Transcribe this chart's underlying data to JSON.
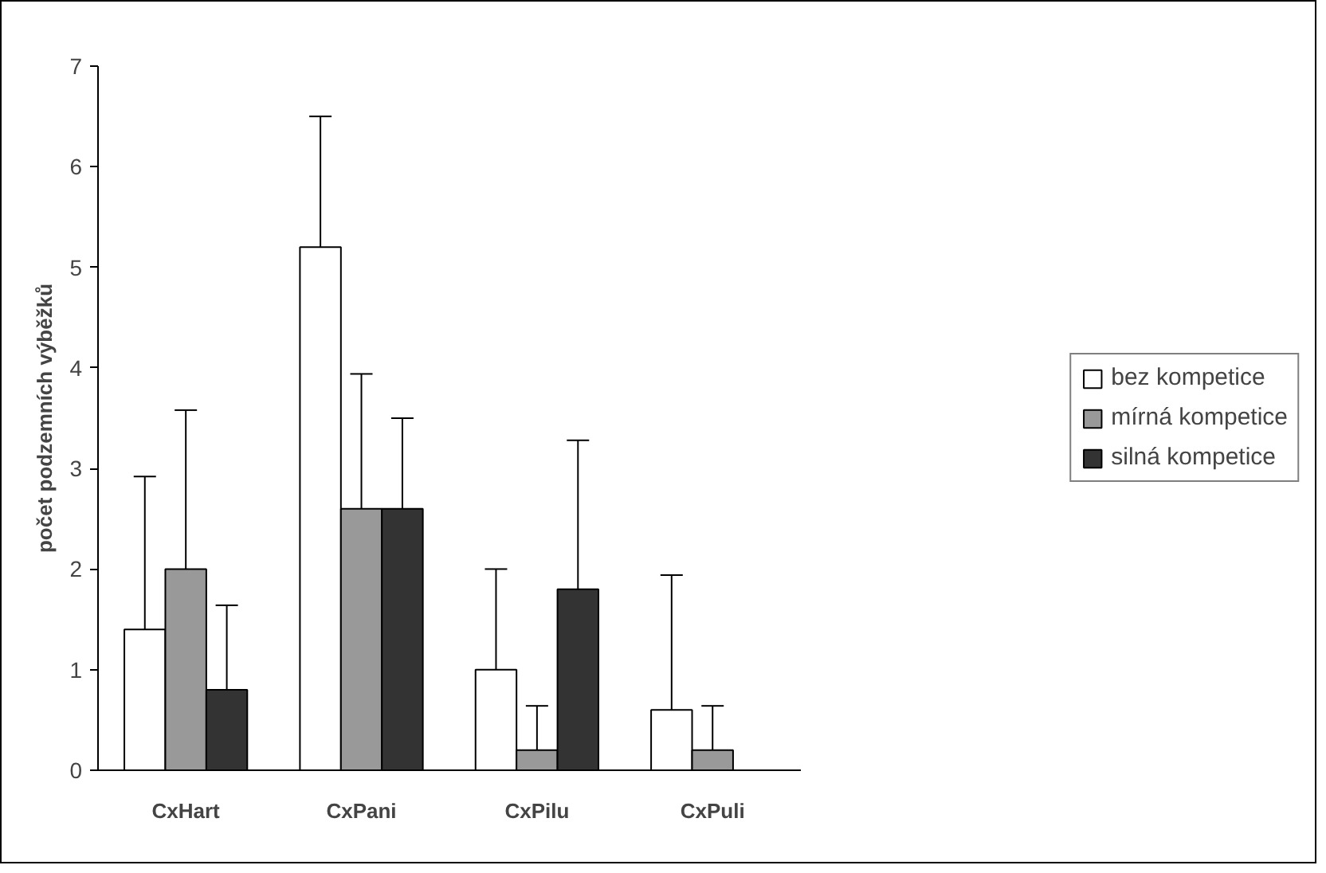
{
  "chart_data": {
    "type": "bar",
    "ylabel": "počet podzemních výběžků",
    "categories": [
      "CxHart",
      "CxPani",
      "CxPilu",
      "CxPuli"
    ],
    "series": [
      {
        "name": "bez kompetice",
        "color": "#ffffff",
        "values": [
          1.4,
          5.2,
          1.0,
          0.6
        ],
        "errors": [
          [
            1.4,
            2.92
          ],
          [
            5.2,
            6.5
          ],
          [
            1.0,
            2.0
          ],
          [
            0.6,
            1.94
          ]
        ]
      },
      {
        "name": "mírná kompetice",
        "color": "#999999",
        "values": [
          2.0,
          2.6,
          0.2,
          0.2
        ],
        "errors": [
          [
            2.0,
            3.58
          ],
          [
            2.6,
            3.94
          ],
          [
            0.2,
            0.64
          ],
          [
            0.2,
            0.64
          ]
        ]
      },
      {
        "name": "silná kompetice",
        "color": "#333333",
        "values": [
          0.8,
          2.6,
          1.8,
          0
        ],
        "errors": [
          [
            0.8,
            1.64
          ],
          [
            2.6,
            3.5
          ],
          [
            1.8,
            3.28
          ],
          null
        ]
      }
    ],
    "ylim": [
      0,
      7
    ],
    "yticks": [
      0,
      1,
      2,
      3,
      4,
      5,
      6,
      7
    ],
    "grid": false,
    "legend": "right"
  }
}
